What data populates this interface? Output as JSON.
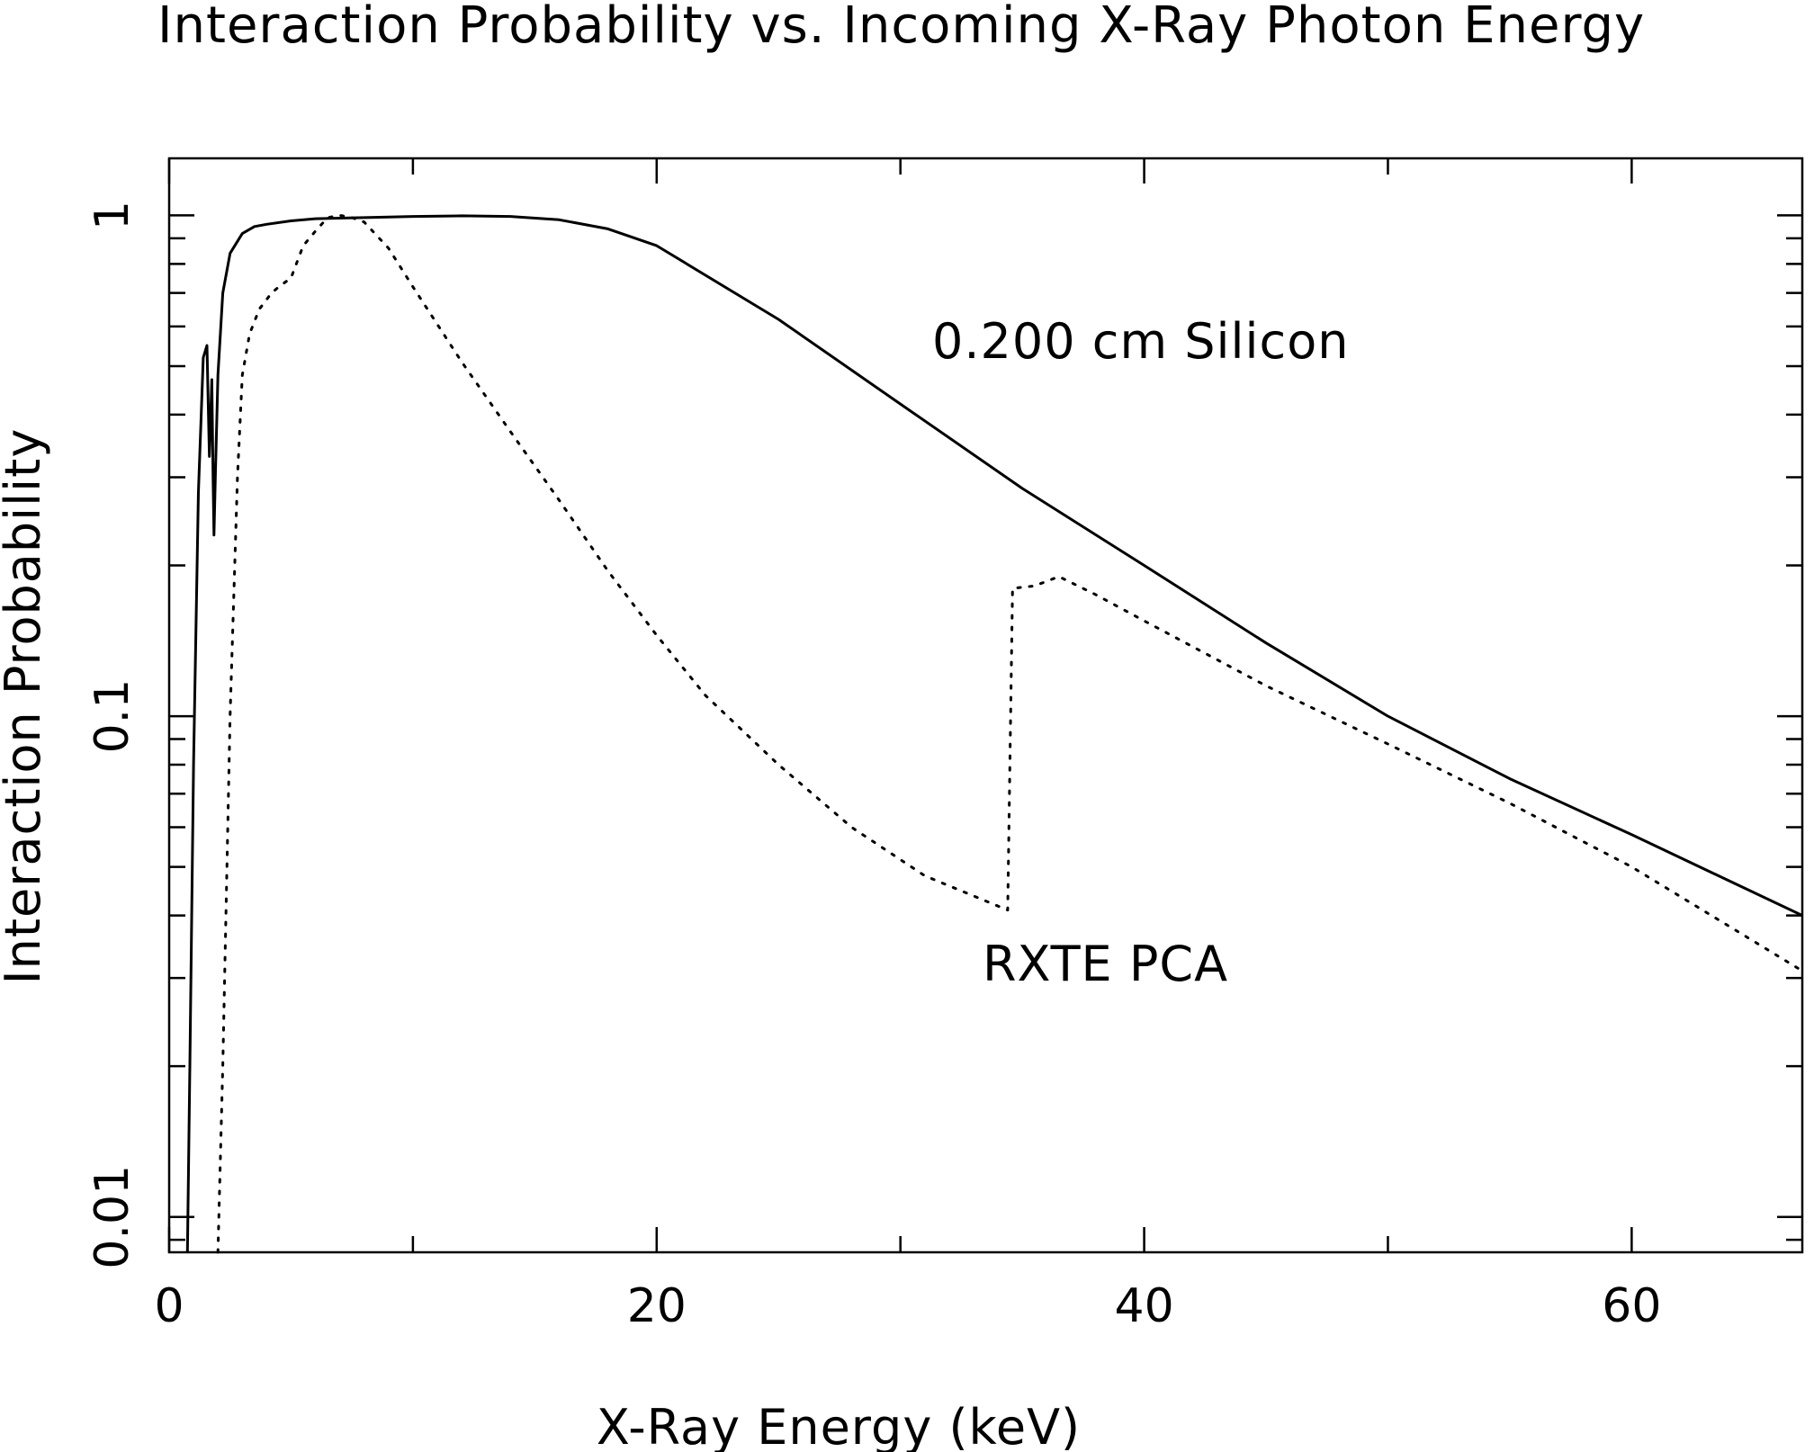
{
  "chart_data": {
    "type": "line",
    "title": "Interaction Probability vs. Incoming X-Ray Photon Energy",
    "xlabel": "X-Ray Energy (keV)",
    "ylabel": "Interaction Probability",
    "xlim": [
      0,
      67
    ],
    "ylim": [
      0.0085,
      1.3
    ],
    "yscale": "log",
    "grid": false,
    "x_ticks": [
      0,
      20,
      40,
      60
    ],
    "y_ticks": [
      0.01,
      0.1,
      1
    ],
    "x_tick_labels": [
      "0",
      "20",
      "40",
      "60"
    ],
    "y_tick_labels": [
      "0.01",
      "0.1",
      "1"
    ],
    "annotations": [
      {
        "text": "0.200 cm Silicon",
        "x": 31.3,
        "y": 0.6
      },
      {
        "text": "RXTE PCA",
        "x": 33.4,
        "y": 0.03
      }
    ],
    "series": [
      {
        "name": "0.200 cm Silicon",
        "style": "solid",
        "x": [
          0.75,
          0.85,
          1.0,
          1.2,
          1.4,
          1.55,
          1.65,
          1.75,
          1.8,
          1.84,
          1.9,
          2.0,
          2.2,
          2.5,
          3.0,
          3.5,
          4.0,
          5.0,
          6.0,
          8.0,
          10.0,
          12.0,
          14.0,
          16.0,
          18.0,
          20.0,
          25.0,
          30.0,
          35.0,
          40.0,
          45.0,
          50.0,
          55.0,
          60.0,
          67.0
        ],
        "y": [
          0.0085,
          0.02,
          0.08,
          0.28,
          0.52,
          0.55,
          0.33,
          0.47,
          0.3,
          0.23,
          0.31,
          0.48,
          0.7,
          0.84,
          0.92,
          0.95,
          0.96,
          0.975,
          0.985,
          0.99,
          0.995,
          0.998,
          0.995,
          0.98,
          0.94,
          0.87,
          0.62,
          0.42,
          0.285,
          0.2,
          0.14,
          0.1,
          0.075,
          0.058,
          0.04
        ]
      },
      {
        "name": "RXTE PCA",
        "style": "dotted",
        "x": [
          2.0,
          2.2,
          2.5,
          2.8,
          3.0,
          3.3,
          3.7,
          4.2,
          4.5,
          5.0,
          5.5,
          6.0,
          6.5,
          7.0,
          7.5,
          8.0,
          9.0,
          10.0,
          12.0,
          14.0,
          16.0,
          18.0,
          20.0,
          22.0,
          25.0,
          28.0,
          31.0,
          34.4,
          34.6,
          35.5,
          36.5,
          38.0,
          40.0,
          45.0,
          50.0,
          55.0,
          60.0,
          67.0
        ],
        "y": [
          0.0085,
          0.02,
          0.1,
          0.3,
          0.48,
          0.58,
          0.65,
          0.7,
          0.72,
          0.75,
          0.87,
          0.93,
          0.99,
          1.0,
          0.99,
          0.97,
          0.86,
          0.72,
          0.51,
          0.37,
          0.27,
          0.195,
          0.145,
          0.11,
          0.08,
          0.06,
          0.048,
          0.041,
          0.18,
          0.182,
          0.19,
          0.175,
          0.155,
          0.115,
          0.088,
          0.067,
          0.05,
          0.031
        ]
      }
    ]
  }
}
